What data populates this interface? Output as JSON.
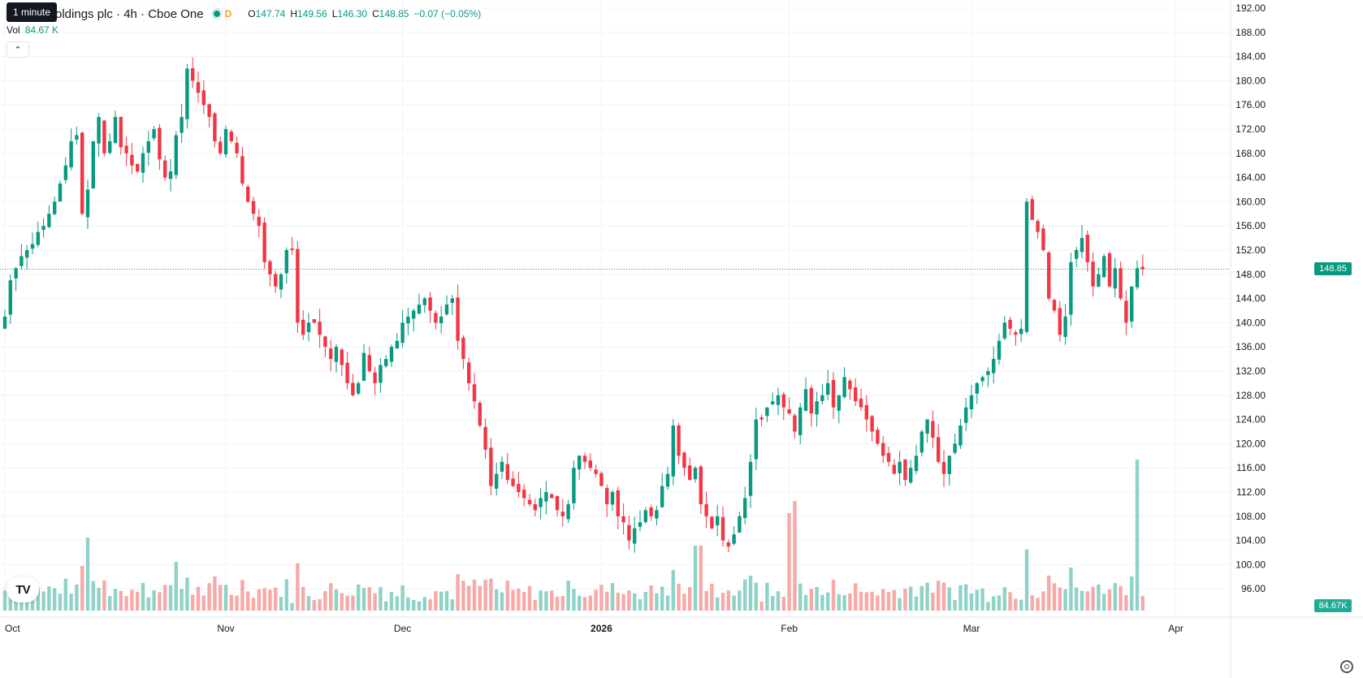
{
  "header": {
    "tooltip": "1 minute",
    "title": "oldings plc · 4h · Cboe One",
    "interval_badge": "D",
    "o_label": "O",
    "o": "147.74",
    "h_label": "H",
    "h": "149.56",
    "l_label": "L",
    "l": "146.30",
    "c_label": "C",
    "c": "148.85",
    "change": "−0.07 (−0.05%)"
  },
  "volume": {
    "label": "Vol",
    "value": "84.67 K"
  },
  "price_axis": {
    "ticks": [
      "192.00",
      "188.00",
      "184.00",
      "180.00",
      "176.00",
      "172.00",
      "168.00",
      "164.00",
      "160.00",
      "156.00",
      "152.00",
      "148.00",
      "144.00",
      "140.00",
      "136.00",
      "132.00",
      "128.00",
      "124.00",
      "120.00",
      "116.00",
      "112.00",
      "108.00",
      "104.00",
      "100.00",
      "96.00"
    ],
    "last_price": "148.85",
    "last_volume": "84.67K"
  },
  "time_axis": {
    "labels": [
      {
        "text": "Oct",
        "bar": 0,
        "bold": false
      },
      {
        "text": "Nov",
        "bar": 40,
        "bold": false
      },
      {
        "text": "Dec",
        "bar": 72,
        "bold": false
      },
      {
        "text": "2026",
        "bar": 108,
        "bold": true
      },
      {
        "text": "Feb",
        "bar": 142,
        "bold": false
      },
      {
        "text": "Mar",
        "bar": 175,
        "bold": false
      },
      {
        "text": "Apr",
        "bar": 212,
        "bold": false
      }
    ]
  },
  "colors": {
    "up": "#089981",
    "down": "#f23645",
    "up_vol": "#8fd2c8",
    "down_vol": "#f7a9a7",
    "grid": "#f0f3fa"
  },
  "logo_text": "TV",
  "chart_data": {
    "type": "candlestick",
    "symbol": "oldings plc",
    "interval": "4h",
    "exchange": "Cboe One",
    "ylim": [
      94,
      193
    ],
    "last_close": 148.85,
    "closes": [
      141,
      147,
      149,
      151,
      152,
      153,
      155,
      156,
      158,
      160,
      163,
      166,
      170,
      171,
      158,
      162,
      170,
      174,
      168,
      170,
      174,
      169,
      168,
      166,
      165,
      168,
      170,
      172,
      167,
      164,
      165,
      171,
      174,
      182,
      180,
      178,
      176,
      174,
      170,
      168,
      172,
      170,
      168,
      163,
      160,
      158,
      156,
      150,
      148,
      146,
      148,
      152,
      152,
      140,
      138,
      140,
      140,
      138,
      136,
      134,
      136,
      133,
      130,
      128,
      130,
      135,
      132,
      130,
      133,
      134,
      136,
      137,
      140,
      141,
      142,
      143,
      144,
      142,
      140,
      141,
      143,
      144,
      137,
      134,
      130,
      127,
      123,
      119,
      113,
      115,
      117,
      114,
      113,
      112,
      111,
      110,
      109,
      111,
      112,
      111,
      109,
      108,
      110,
      116,
      118,
      117,
      116,
      115,
      113,
      110,
      112,
      108,
      107,
      104,
      106,
      107,
      109,
      108,
      109,
      113,
      115,
      123,
      118,
      116,
      114,
      116,
      110,
      108,
      106,
      108,
      104,
      103,
      105,
      108,
      111,
      117,
      124,
      124,
      126,
      127,
      128,
      126,
      125,
      122,
      126,
      129,
      125,
      127,
      128,
      130,
      126,
      128,
      131,
      129,
      127,
      126,
      124,
      122,
      120,
      118,
      117,
      115,
      117,
      114,
      116,
      118,
      122,
      124,
      121,
      117,
      115,
      118,
      120,
      123,
      126,
      128,
      130,
      131,
      132,
      134,
      137,
      140,
      139,
      138,
      139,
      160,
      157,
      155,
      152,
      144,
      142,
      138,
      141,
      150,
      152,
      154,
      150,
      146,
      148,
      151,
      146,
      149,
      144,
      140,
      146,
      149,
      148.85
    ]
  }
}
